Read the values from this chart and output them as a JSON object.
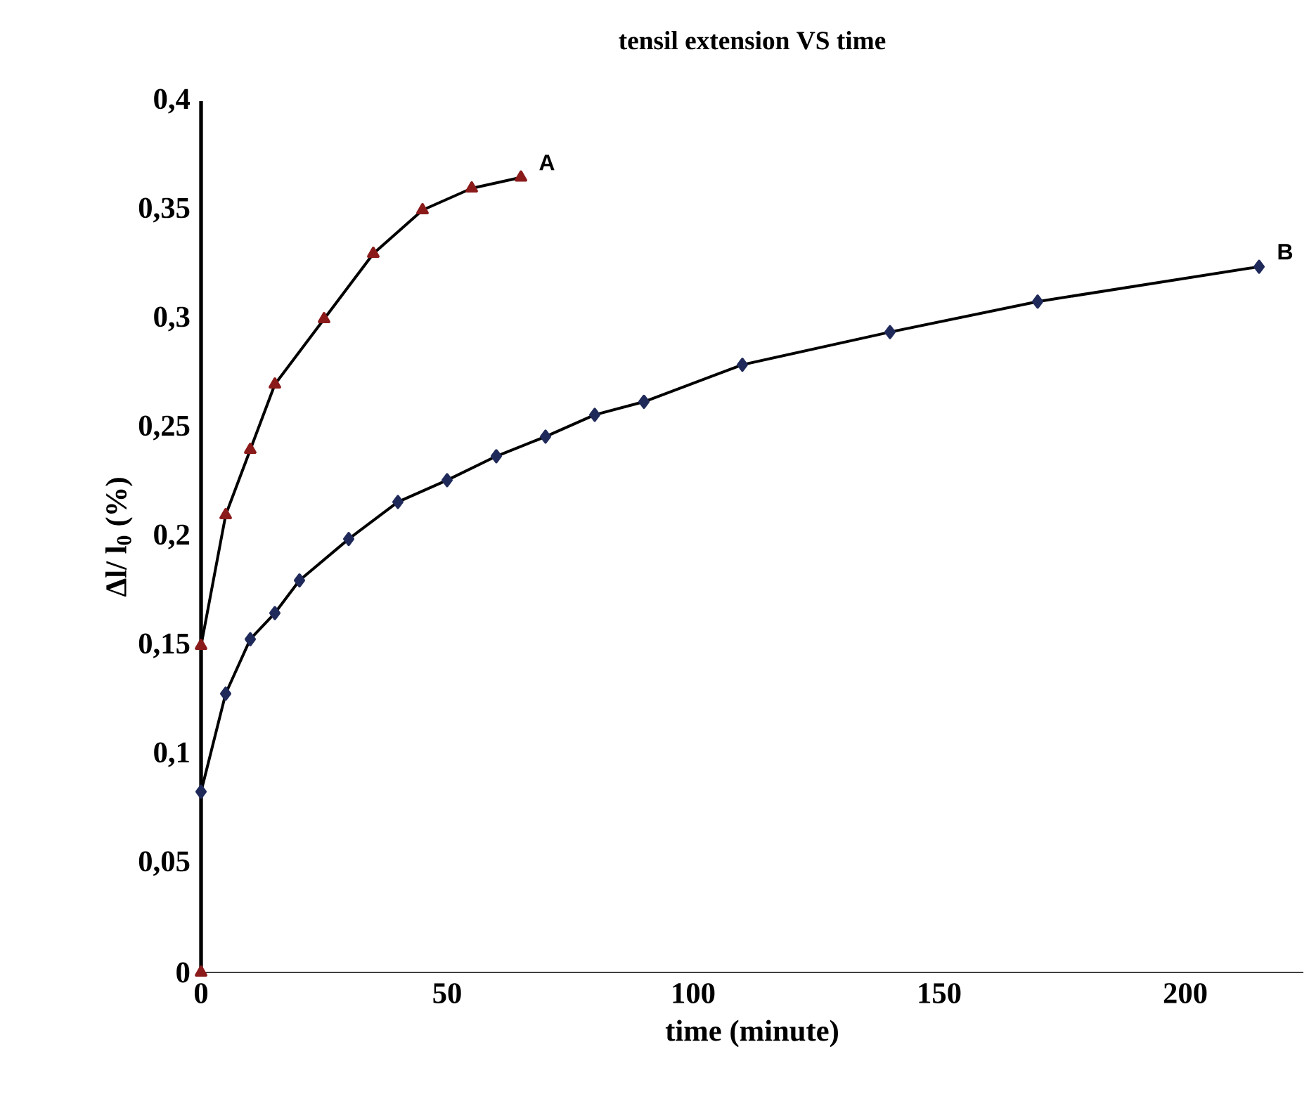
{
  "chart_data": {
    "type": "line",
    "title": "tensil extension VS time",
    "xlabel": "time (minute)",
    "ylabel": "Δl/ l$_{0}$ (%)",
    "xlim": [
      0,
      224
    ],
    "xticks": [
      0,
      50,
      100,
      150,
      200
    ],
    "ylim": [
      0,
      0.4
    ],
    "yticks": [
      {
        "value": 0,
        "label": "0"
      },
      {
        "value": 0.05,
        "label": "0,05"
      },
      {
        "value": 0.1,
        "label": "0,1"
      },
      {
        "value": 0.15,
        "label": "0,15"
      },
      {
        "value": 0.2,
        "label": "0,2"
      },
      {
        "value": 0.25,
        "label": "0,25"
      },
      {
        "value": 0.3,
        "label": "0,3"
      },
      {
        "value": 0.35,
        "label": "0,35"
      },
      {
        "value": 0.4,
        "label": "0,4"
      }
    ],
    "series": [
      {
        "name": "A",
        "color": "#8b1a1a",
        "marker": "triangle",
        "x": [
          0,
          0,
          5,
          10,
          15,
          25,
          35,
          45,
          55,
          65
        ],
        "values": [
          0,
          0.15,
          0.21,
          0.24,
          0.27,
          0.3,
          0.33,
          0.35,
          0.36,
          0.365
        ]
      },
      {
        "name": "B",
        "color": "#1f2a5a",
        "marker": "diamond",
        "x": [
          0,
          5,
          10,
          15,
          20,
          30,
          40,
          50,
          60,
          70,
          80,
          90,
          110,
          140,
          170,
          215
        ],
        "values": [
          0.083,
          0.128,
          0.153,
          0.165,
          0.18,
          0.199,
          0.216,
          0.226,
          0.237,
          0.246,
          0.256,
          0.262,
          0.279,
          0.294,
          0.308,
          0.324
        ]
      }
    ]
  }
}
